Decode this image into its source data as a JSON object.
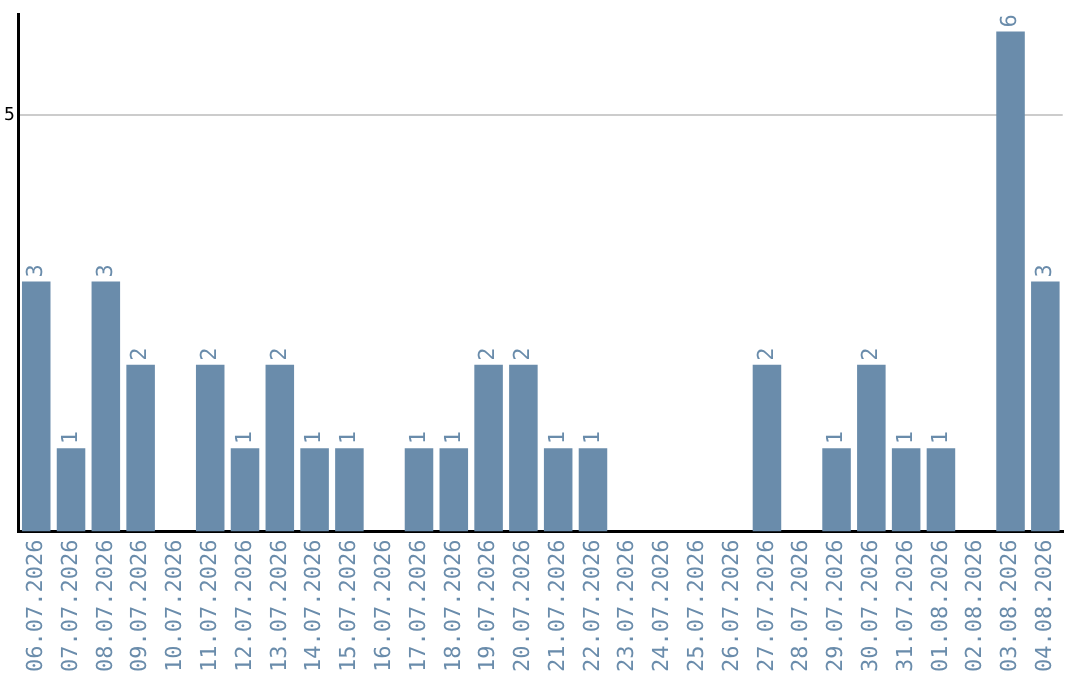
{
  "chart_data": {
    "type": "bar",
    "categories": [
      "06.07.2026",
      "07.07.2026",
      "08.07.2026",
      "09.07.2026",
      "10.07.2026",
      "11.07.2026",
      "12.07.2026",
      "13.07.2026",
      "14.07.2026",
      "15.07.2026",
      "16.07.2026",
      "17.07.2026",
      "18.07.2026",
      "19.07.2026",
      "20.07.2026",
      "21.07.2026",
      "22.07.2026",
      "23.07.2026",
      "24.07.2026",
      "25.07.2026",
      "26.07.2026",
      "27.07.2026",
      "28.07.2026",
      "29.07.2026",
      "30.07.2026",
      "31.07.2026",
      "01.08.2026",
      "02.08.2026",
      "03.08.2026",
      "04.08.2026"
    ],
    "values": [
      3,
      1,
      3,
      2,
      null,
      2,
      1,
      2,
      1,
      1,
      null,
      1,
      1,
      2,
      2,
      1,
      1,
      null,
      null,
      null,
      null,
      2,
      null,
      1,
      2,
      1,
      1,
      null,
      6,
      3
    ],
    "color": "#6a8cab",
    "ylim": [
      0,
      6.2
    ],
    "yticks": [
      5
    ],
    "grid": "y",
    "data_labels": true
  }
}
